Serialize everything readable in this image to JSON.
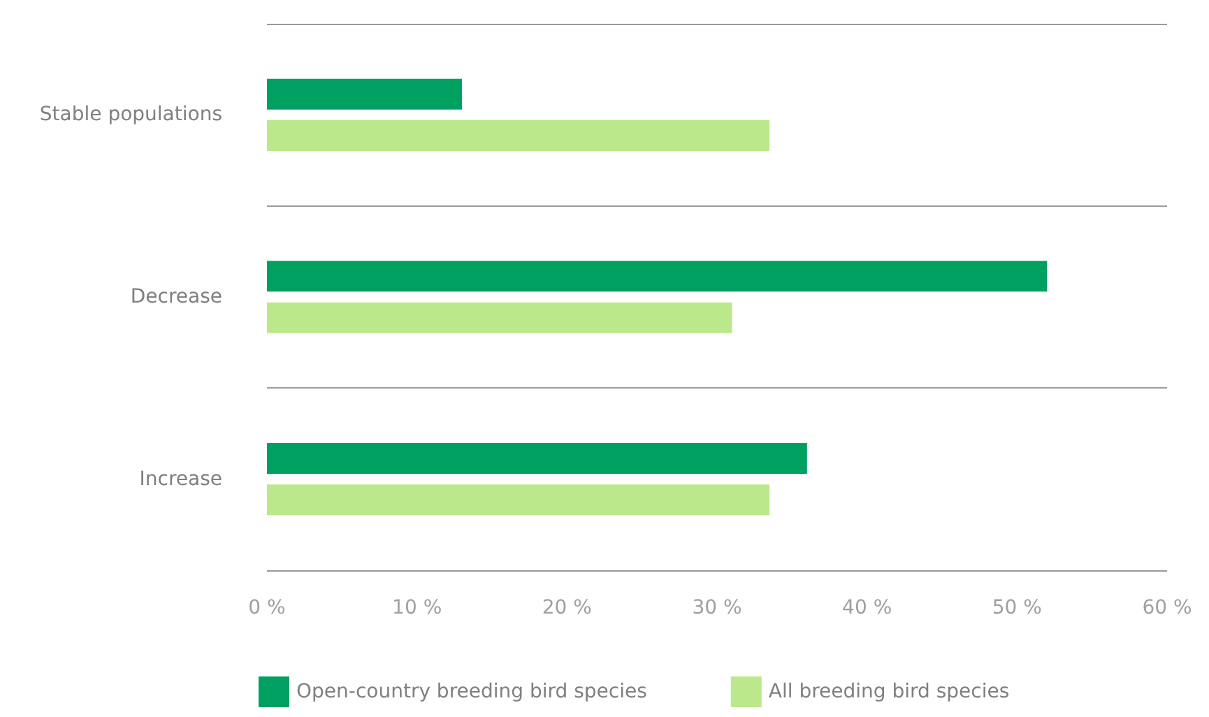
{
  "chart_data": {
    "type": "bar",
    "orientation": "horizontal",
    "categories": [
      "Stable populations",
      "Decrease",
      "Increase"
    ],
    "series": [
      {
        "name": "Open-country breeding bird species",
        "color": "#00a060",
        "values": [
          13,
          52,
          36
        ]
      },
      {
        "name": "All breeding bird species",
        "color": "#bce88c",
        "values": [
          33.5,
          31,
          33.5
        ]
      }
    ],
    "xlim": [
      0,
      60
    ],
    "xticks": [
      {
        "value": 0,
        "label": "0 %"
      },
      {
        "value": 10,
        "label": "10 %"
      },
      {
        "value": 20,
        "label": "20 %"
      },
      {
        "value": 30,
        "label": "30 %"
      },
      {
        "value": 40,
        "label": "40 %"
      },
      {
        "value": 50,
        "label": "50 %"
      },
      {
        "value": 60,
        "label": "60 %"
      }
    ],
    "grid": "y",
    "legend": "bottom left"
  }
}
